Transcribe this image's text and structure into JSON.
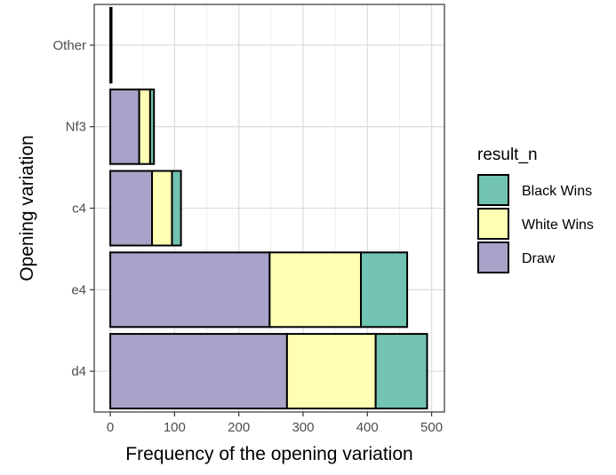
{
  "chart_data": {
    "type": "bar",
    "orientation": "horizontal",
    "stacked": true,
    "categories": [
      "d4",
      "e4",
      "c4",
      "Nf3",
      "Other"
    ],
    "series": [
      {
        "name": "Draw",
        "values": [
          275,
          248,
          65,
          45,
          2
        ],
        "color": "#A9A3C9"
      },
      {
        "name": "White Wins",
        "values": [
          138,
          142,
          31,
          17,
          0
        ],
        "color": "#FFFFB3"
      },
      {
        "name": "Black Wins",
        "values": [
          80,
          72,
          14,
          6,
          0
        ],
        "color": "#72C3B1"
      }
    ],
    "xlabel": "Frequency of the opening variation",
    "ylabel": "Opening variation",
    "xlim": [
      -25,
      520
    ],
    "xticks": [
      0,
      100,
      200,
      300,
      400,
      500
    ],
    "grid": true,
    "legend": {
      "title": "result_n",
      "placement": "right",
      "entries": [
        "Black Wins",
        "White Wins",
        "Draw"
      ]
    }
  }
}
